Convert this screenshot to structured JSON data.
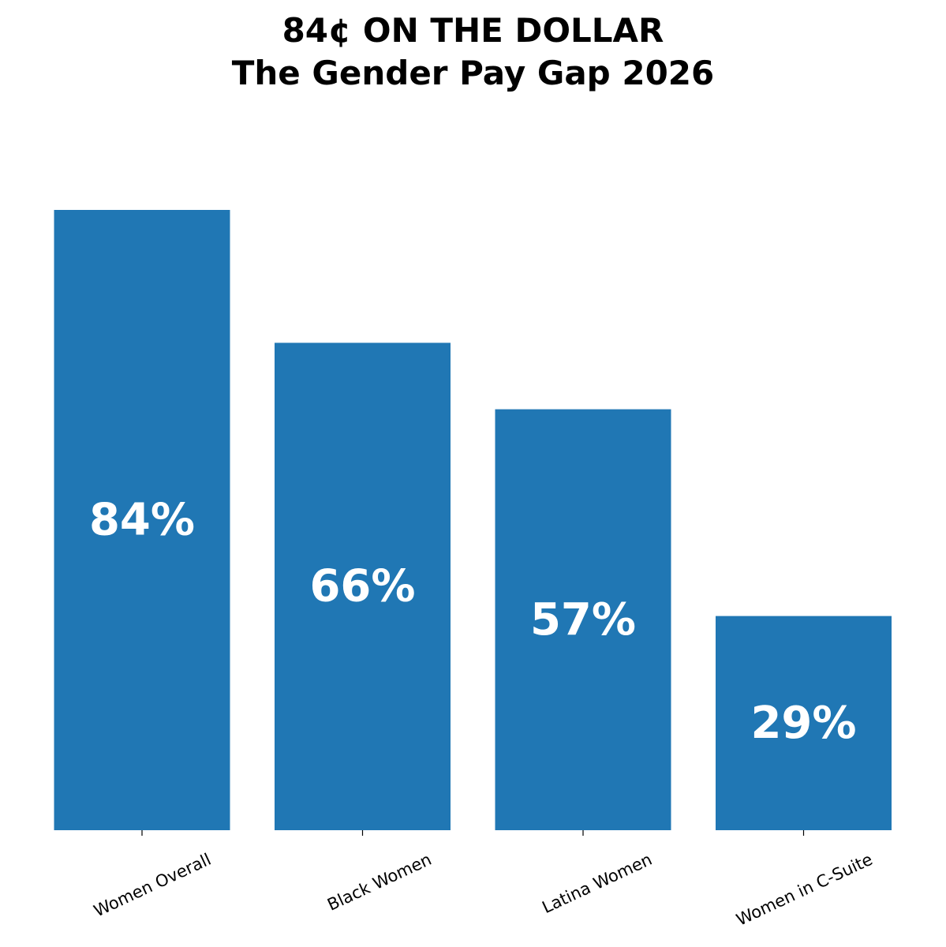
{
  "chart_data": {
    "type": "bar",
    "title": "84¢ ON THE DOLLAR",
    "subtitle": "The Gender Pay Gap 2026",
    "xlabel": "",
    "ylabel": "",
    "categories": [
      "Women Overall",
      "Black Women",
      "Latina Women",
      "Women in C-Suite"
    ],
    "values": [
      84,
      66,
      57,
      29
    ],
    "data_labels": [
      "84%",
      "66%",
      "57%",
      "29%"
    ],
    "ylim": [
      0,
      84
    ],
    "grid": false,
    "y_axis_visible": false,
    "bar_color": "#2077b4",
    "label_color": "#ffffff"
  }
}
